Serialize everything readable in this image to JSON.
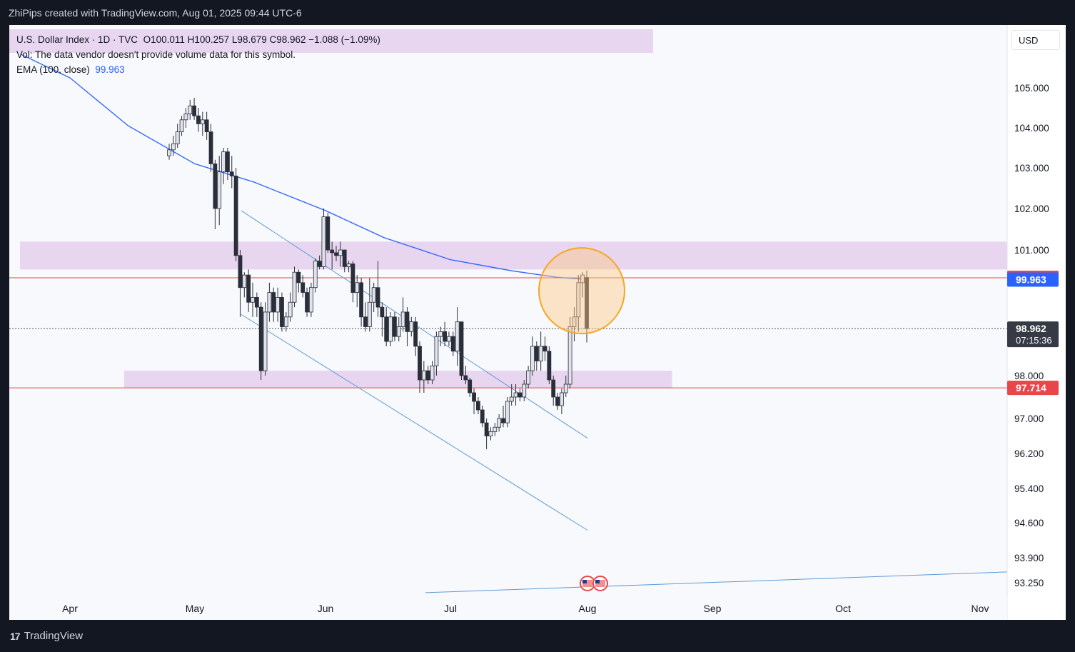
{
  "header": {
    "credit": "ZhiPips created with TradingView.com, Aug 01, 2025 09:44 UTC-6"
  },
  "legend": {
    "symbol": "U.S. Dollar Index · 1D · TVC",
    "ohlc": "O100.011  H100.257  L98.679  C98.962  −1.088 (−1.09%)",
    "volume_note": "Vol: The data vendor doesn't provide volume data for this symbol.",
    "ema_label": "EMA (100, close)",
    "ema_value": "99.963"
  },
  "currency": "USD",
  "footer": {
    "brand": "TradingView",
    "logo_text": "17"
  },
  "colors": {
    "ema": "#2962ff",
    "zone": "#e8d5ef",
    "red_line": "#e8464a",
    "circle": "#f5a623",
    "channel": "#5b9bd5",
    "candle_up": "#e0e3eb",
    "candle_down": "#2a2e39",
    "current_price_bg": "#363a45"
  },
  "chart_data": {
    "type": "candlestick",
    "title": "U.S. Dollar Index · 1D · TVC",
    "y_ticks": [
      105.0,
      104.0,
      103.0,
      102.0,
      101.0,
      98.0,
      97.0,
      96.2,
      95.4,
      94.6,
      93.9,
      93.25
    ],
    "y_tick_labels": [
      "105.000",
      "104.000",
      "103.000",
      "102.000",
      "101.000",
      "98.000",
      "97.000",
      "96.200",
      "95.400",
      "94.600",
      "93.900",
      "93.250"
    ],
    "x_labels": [
      "Apr",
      "May",
      "Jun",
      "Jul",
      "Aug",
      "Sep",
      "Oct",
      "Nov"
    ],
    "x_label_dates": [
      "2025-04-01",
      "2025-05-01",
      "2025-06-01",
      "2025-07-01",
      "2025-08-01",
      "2025-09-01",
      "2025-10-01",
      "2025-11-01"
    ],
    "price_labels": [
      {
        "text": "100.000",
        "value": 100.0,
        "color": "#e8464a"
      },
      {
        "text": "99.963",
        "value": 99.963,
        "color": "#2962ff"
      },
      {
        "text": "98.962",
        "value": 98.962,
        "color": "#363a45",
        "sub": "07:15:36"
      },
      {
        "text": "97.714",
        "value": 97.714,
        "color": "#e8464a"
      }
    ],
    "horizontal_lines": [
      {
        "value": 100.0,
        "color": "#e8464a"
      },
      {
        "value": 97.714,
        "color": "#e8464a"
      },
      {
        "value": 98.962,
        "color": "#555555",
        "style": "dotted"
      }
    ],
    "zones": [
      {
        "from": "2025-03-20",
        "to": "2025-11-30",
        "low": 100.3,
        "high": 101.2
      },
      {
        "from": "2025-04-14",
        "to": "2025-08-22",
        "low": 97.71,
        "high": 98.1
      }
    ],
    "channel_lines": [
      {
        "x1": "2025-05-12",
        "y1": 101.95,
        "x2": "2025-08-01",
        "y2": 96.55
      },
      {
        "x1": "2025-05-12",
        "y1": 99.25,
        "x2": "2025-08-01",
        "y2": 94.45
      }
    ],
    "trend_line": {
      "x1": "2025-06-25",
      "y1": 93.0,
      "x2": "2025-11-12",
      "y2": 93.55
    },
    "circle_highlight": {
      "date": "2025-08-01",
      "value": 100.1
    },
    "ema_100": [
      {
        "date": "2025-03-20",
        "value": 105.85
      },
      {
        "date": "2025-04-01",
        "value": 105.25
      },
      {
        "date": "2025-04-15",
        "value": 104.05
      },
      {
        "date": "2025-05-01",
        "value": 103.1
      },
      {
        "date": "2025-05-15",
        "value": 102.65
      },
      {
        "date": "2025-06-01",
        "value": 101.95
      },
      {
        "date": "2025-06-15",
        "value": 101.3
      },
      {
        "date": "2025-07-01",
        "value": 100.65
      },
      {
        "date": "2025-07-15",
        "value": 100.25
      },
      {
        "date": "2025-07-25",
        "value": 100.02
      },
      {
        "date": "2025-08-01",
        "value": 99.963
      }
    ],
    "candles": [
      {
        "date": "2025-03-20",
        "o": 103.3,
        "h": 103.6,
        "l": 103.2,
        "c": 103.45
      },
      {
        "date": "2025-03-21",
        "o": 103.45,
        "h": 103.8,
        "l": 103.3,
        "c": 103.6
      },
      {
        "date": "2025-03-24",
        "o": 103.6,
        "h": 104.1,
        "l": 103.5,
        "c": 103.9
      },
      {
        "date": "2025-03-25",
        "o": 103.9,
        "h": 104.3,
        "l": 103.8,
        "c": 104.2
      },
      {
        "date": "2025-03-26",
        "o": 104.2,
        "h": 104.5,
        "l": 104.0,
        "c": 104.35
      },
      {
        "date": "2025-03-27",
        "o": 104.35,
        "h": 104.7,
        "l": 104.2,
        "c": 104.55
      },
      {
        "date": "2025-03-28",
        "o": 104.55,
        "h": 104.75,
        "l": 104.2,
        "c": 104.3
      },
      {
        "date": "2025-03-31",
        "o": 104.3,
        "h": 104.5,
        "l": 103.9,
        "c": 104.1
      },
      {
        "date": "2025-04-01",
        "o": 104.1,
        "h": 104.4,
        "l": 103.8,
        "c": 104.2
      },
      {
        "date": "2025-04-02",
        "o": 104.2,
        "h": 104.4,
        "l": 103.7,
        "c": 103.9
      },
      {
        "date": "2025-04-03",
        "o": 103.9,
        "h": 104.1,
        "l": 102.9,
        "c": 103.1
      },
      {
        "date": "2025-04-04",
        "o": 103.1,
        "h": 103.2,
        "l": 101.5,
        "c": 102.0
      },
      {
        "date": "2025-04-07",
        "o": 102.0,
        "h": 103.3,
        "l": 101.6,
        "c": 102.9
      },
      {
        "date": "2025-04-08",
        "o": 102.9,
        "h": 103.5,
        "l": 102.6,
        "c": 103.4
      },
      {
        "date": "2025-04-09",
        "o": 103.4,
        "h": 103.5,
        "l": 102.7,
        "c": 102.9
      },
      {
        "date": "2025-04-10",
        "o": 102.9,
        "h": 103.3,
        "l": 102.5,
        "c": 102.8
      },
      {
        "date": "2025-04-11",
        "o": 102.8,
        "h": 103.0,
        "l": 100.6,
        "c": 100.8
      },
      {
        "date": "2025-04-14",
        "o": 100.8,
        "h": 101.0,
        "l": 99.2,
        "c": 99.8
      },
      {
        "date": "2025-04-15",
        "o": 99.8,
        "h": 100.2,
        "l": 99.6,
        "c": 100.1
      },
      {
        "date": "2025-04-16",
        "o": 100.1,
        "h": 100.3,
        "l": 99.3,
        "c": 99.5
      },
      {
        "date": "2025-04-17",
        "o": 99.5,
        "h": 99.9,
        "l": 99.2,
        "c": 99.6
      },
      {
        "date": "2025-04-18",
        "o": 99.6,
        "h": 99.7,
        "l": 99.2,
        "c": 99.4
      },
      {
        "date": "2025-04-21",
        "o": 99.4,
        "h": 99.5,
        "l": 97.9,
        "c": 98.1
      },
      {
        "date": "2025-04-22",
        "o": 98.1,
        "h": 99.5,
        "l": 98.0,
        "c": 99.3
      },
      {
        "date": "2025-04-23",
        "o": 99.3,
        "h": 99.9,
        "l": 99.1,
        "c": 99.7
      },
      {
        "date": "2025-04-24",
        "o": 99.7,
        "h": 99.8,
        "l": 99.1,
        "c": 99.3
      },
      {
        "date": "2025-04-25",
        "o": 99.3,
        "h": 99.8,
        "l": 99.1,
        "c": 99.6
      },
      {
        "date": "2025-04-28",
        "o": 99.6,
        "h": 99.7,
        "l": 98.9,
        "c": 99.0
      },
      {
        "date": "2025-04-29",
        "o": 99.0,
        "h": 99.3,
        "l": 98.9,
        "c": 99.2
      },
      {
        "date": "2025-04-30",
        "o": 99.2,
        "h": 99.7,
        "l": 99.1,
        "c": 99.5
      },
      {
        "date": "2025-05-01",
        "o": 99.5,
        "h": 100.4,
        "l": 99.4,
        "c": 100.2
      },
      {
        "date": "2025-05-02",
        "o": 100.2,
        "h": 100.3,
        "l": 99.7,
        "c": 99.9
      },
      {
        "date": "2025-05-05",
        "o": 99.9,
        "h": 100.1,
        "l": 99.6,
        "c": 99.7
      },
      {
        "date": "2025-05-06",
        "o": 99.7,
        "h": 99.8,
        "l": 99.2,
        "c": 99.3
      },
      {
        "date": "2025-05-07",
        "o": 99.3,
        "h": 99.9,
        "l": 99.2,
        "c": 99.8
      },
      {
        "date": "2025-05-08",
        "o": 99.8,
        "h": 100.7,
        "l": 99.7,
        "c": 100.6
      },
      {
        "date": "2025-05-09",
        "o": 100.6,
        "h": 100.8,
        "l": 100.3,
        "c": 100.4
      },
      {
        "date": "2025-05-12",
        "o": 100.4,
        "h": 102.0,
        "l": 100.3,
        "c": 101.8
      },
      {
        "date": "2025-05-13",
        "o": 101.8,
        "h": 101.9,
        "l": 100.9,
        "c": 101.0
      },
      {
        "date": "2025-05-14",
        "o": 101.0,
        "h": 101.2,
        "l": 100.3,
        "c": 100.9
      },
      {
        "date": "2025-05-15",
        "o": 100.9,
        "h": 101.1,
        "l": 100.6,
        "c": 100.8
      },
      {
        "date": "2025-05-16",
        "o": 100.8,
        "h": 101.2,
        "l": 100.4,
        "c": 101.0
      },
      {
        "date": "2025-05-19",
        "o": 101.0,
        "h": 101.0,
        "l": 100.2,
        "c": 100.4
      },
      {
        "date": "2025-05-20",
        "o": 100.4,
        "h": 100.6,
        "l": 100.2,
        "c": 100.5
      },
      {
        "date": "2025-05-21",
        "o": 100.5,
        "h": 100.6,
        "l": 99.5,
        "c": 99.7
      },
      {
        "date": "2025-05-22",
        "o": 99.7,
        "h": 100.1,
        "l": 99.4,
        "c": 99.9
      },
      {
        "date": "2025-05-23",
        "o": 99.9,
        "h": 100.0,
        "l": 99.0,
        "c": 99.2
      },
      {
        "date": "2025-05-26",
        "o": 99.2,
        "h": 99.5,
        "l": 98.9,
        "c": 99.0
      },
      {
        "date": "2025-05-27",
        "o": 99.0,
        "h": 100.0,
        "l": 98.9,
        "c": 99.5
      },
      {
        "date": "2025-05-28",
        "o": 99.5,
        "h": 99.9,
        "l": 99.3,
        "c": 99.8
      },
      {
        "date": "2025-05-29",
        "o": 99.8,
        "h": 100.6,
        "l": 99.2,
        "c": 99.4
      },
      {
        "date": "2025-05-30",
        "o": 99.4,
        "h": 99.5,
        "l": 98.8,
        "c": 99.2
      },
      {
        "date": "2025-06-02",
        "o": 99.2,
        "h": 99.4,
        "l": 98.6,
        "c": 98.7
      },
      {
        "date": "2025-06-03",
        "o": 98.7,
        "h": 99.3,
        "l": 98.6,
        "c": 99.2
      },
      {
        "date": "2025-06-04",
        "o": 99.2,
        "h": 99.3,
        "l": 98.7,
        "c": 98.8
      },
      {
        "date": "2025-06-05",
        "o": 98.8,
        "h": 99.2,
        "l": 98.7,
        "c": 99.0
      },
      {
        "date": "2025-06-06",
        "o": 99.0,
        "h": 99.6,
        "l": 98.9,
        "c": 99.3
      },
      {
        "date": "2025-06-09",
        "o": 99.3,
        "h": 99.4,
        "l": 98.6,
        "c": 98.9
      },
      {
        "date": "2025-06-10",
        "o": 98.9,
        "h": 99.2,
        "l": 98.8,
        "c": 99.1
      },
      {
        "date": "2025-06-11",
        "o": 99.1,
        "h": 99.2,
        "l": 98.4,
        "c": 98.6
      },
      {
        "date": "2025-06-12",
        "o": 98.6,
        "h": 98.7,
        "l": 97.6,
        "c": 97.9
      },
      {
        "date": "2025-06-13",
        "o": 97.9,
        "h": 98.3,
        "l": 97.6,
        "c": 98.1
      },
      {
        "date": "2025-06-16",
        "o": 98.1,
        "h": 98.2,
        "l": 97.8,
        "c": 97.9
      },
      {
        "date": "2025-06-17",
        "o": 97.9,
        "h": 98.3,
        "l": 97.8,
        "c": 98.2
      },
      {
        "date": "2025-06-18",
        "o": 98.2,
        "h": 98.9,
        "l": 98.0,
        "c": 98.8
      },
      {
        "date": "2025-06-19",
        "o": 98.8,
        "h": 99.0,
        "l": 98.6,
        "c": 98.9
      },
      {
        "date": "2025-06-20",
        "o": 98.9,
        "h": 99.1,
        "l": 98.6,
        "c": 98.7
      },
      {
        "date": "2025-06-23",
        "o": 98.7,
        "h": 98.9,
        "l": 98.6,
        "c": 98.8
      },
      {
        "date": "2025-06-24",
        "o": 98.8,
        "h": 98.9,
        "l": 98.4,
        "c": 98.5
      },
      {
        "date": "2025-06-25",
        "o": 98.5,
        "h": 99.4,
        "l": 98.2,
        "c": 99.1
      },
      {
        "date": "2025-06-26",
        "o": 99.1,
        "h": 99.1,
        "l": 97.9,
        "c": 98.0
      },
      {
        "date": "2025-06-27",
        "o": 98.0,
        "h": 98.2,
        "l": 97.8,
        "c": 97.9
      },
      {
        "date": "2025-06-30",
        "o": 97.9,
        "h": 97.95,
        "l": 97.5,
        "c": 97.6
      },
      {
        "date": "2025-07-01",
        "o": 97.6,
        "h": 97.7,
        "l": 97.1,
        "c": 97.4
      },
      {
        "date": "2025-07-02",
        "o": 97.4,
        "h": 97.5,
        "l": 97.1,
        "c": 97.2
      },
      {
        "date": "2025-07-03",
        "o": 97.2,
        "h": 97.3,
        "l": 96.8,
        "c": 96.9
      },
      {
        "date": "2025-07-04",
        "o": 96.9,
        "h": 97.0,
        "l": 96.3,
        "c": 96.6
      },
      {
        "date": "2025-07-07",
        "o": 96.6,
        "h": 96.8,
        "l": 96.5,
        "c": 96.7
      },
      {
        "date": "2025-07-08",
        "o": 96.7,
        "h": 96.9,
        "l": 96.6,
        "c": 96.8
      },
      {
        "date": "2025-07-09",
        "o": 96.8,
        "h": 97.1,
        "l": 96.7,
        "c": 97.0
      },
      {
        "date": "2025-07-10",
        "o": 97.0,
        "h": 97.3,
        "l": 96.8,
        "c": 96.9
      },
      {
        "date": "2025-07-11",
        "o": 96.9,
        "h": 97.5,
        "l": 96.8,
        "c": 97.4
      },
      {
        "date": "2025-07-14",
        "o": 97.4,
        "h": 97.8,
        "l": 97.3,
        "c": 97.5
      },
      {
        "date": "2025-07-15",
        "o": 97.5,
        "h": 97.8,
        "l": 97.3,
        "c": 97.6
      },
      {
        "date": "2025-07-16",
        "o": 97.6,
        "h": 97.7,
        "l": 97.4,
        "c": 97.5
      },
      {
        "date": "2025-07-17",
        "o": 97.5,
        "h": 97.9,
        "l": 97.4,
        "c": 97.8
      },
      {
        "date": "2025-07-18",
        "o": 97.8,
        "h": 98.2,
        "l": 97.7,
        "c": 98.1
      },
      {
        "date": "2025-07-21",
        "o": 98.1,
        "h": 98.8,
        "l": 98.0,
        "c": 98.6
      },
      {
        "date": "2025-07-22",
        "o": 98.6,
        "h": 98.7,
        "l": 98.1,
        "c": 98.3
      },
      {
        "date": "2025-07-23",
        "o": 98.3,
        "h": 98.9,
        "l": 98.1,
        "c": 98.6
      },
      {
        "date": "2025-07-24",
        "o": 98.6,
        "h": 98.8,
        "l": 98.3,
        "c": 98.5
      },
      {
        "date": "2025-07-25",
        "o": 98.5,
        "h": 98.6,
        "l": 97.8,
        "c": 97.9
      },
      {
        "date": "2025-07-28",
        "o": 97.9,
        "h": 98.0,
        "l": 97.3,
        "c": 97.5
      },
      {
        "date": "2025-07-29",
        "o": 97.5,
        "h": 97.6,
        "l": 97.2,
        "c": 97.3
      },
      {
        "date": "2025-07-30",
        "o": 97.3,
        "h": 97.7,
        "l": 97.1,
        "c": 97.6
      },
      {
        "date": "2025-07-31",
        "o": 97.6,
        "h": 98.0,
        "l": 97.5,
        "c": 97.8
      },
      {
        "date": "2025-08-01a",
        "o": 97.8,
        "h": 99.2,
        "l": 97.7,
        "c": 99.0
      },
      {
        "date": "2025-08-01b",
        "o": 99.0,
        "h": 99.4,
        "l": 98.7,
        "c": 99.2
      },
      {
        "date": "2025-08-01c",
        "o": 99.2,
        "h": 100.1,
        "l": 98.9,
        "c": 99.9
      },
      {
        "date": "2025-08-01d",
        "o": 99.9,
        "h": 100.2,
        "l": 99.6,
        "c": 100.1
      },
      {
        "date": "2025-08-01",
        "o": 100.011,
        "h": 100.257,
        "l": 98.679,
        "c": 98.962
      }
    ]
  }
}
